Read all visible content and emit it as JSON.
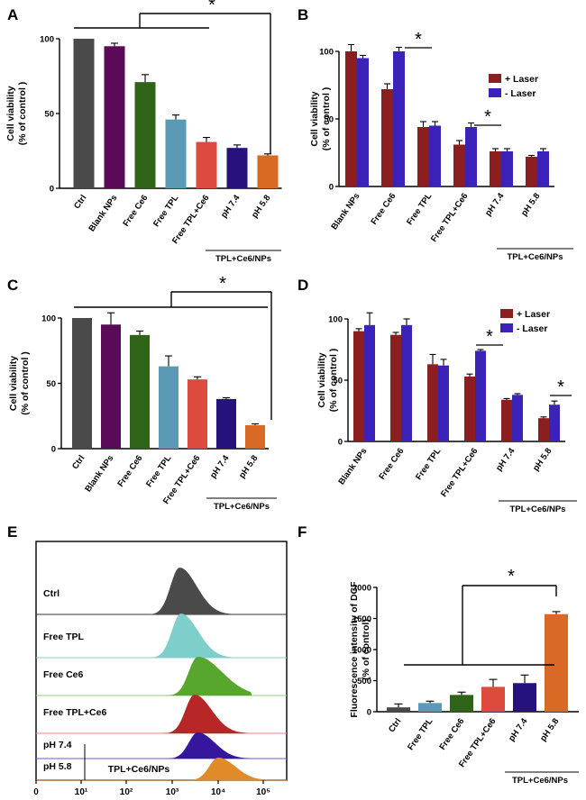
{
  "figure": {
    "colors": {
      "ctrl": "#4a4a4a",
      "blank": "#5b0a58",
      "ce6": "#2f6317",
      "tpl": "#5b9ab5",
      "tplce6": "#dd4b3f",
      "ph74": "#26127a",
      "ph58": "#d96a26",
      "laser_plus": "#8b1f1f",
      "laser_minus": "#3b22b8"
    }
  },
  "chart_data": [
    {
      "panel": "A",
      "type": "bar",
      "ylabel": [
        "Cell viability",
        "(% of control )"
      ],
      "ylim": [
        0,
        100
      ],
      "yticks": [
        "0",
        "50",
        "100"
      ],
      "categories": [
        "Ctrl",
        "Blank NPs",
        "Free Ce6",
        "Free TPL",
        "Free TPL+Ce6",
        "pH 7.4",
        "pH 5.8"
      ],
      "values": [
        100,
        95,
        71,
        46,
        31,
        27,
        22
      ],
      "errors": [
        0,
        2,
        5,
        3,
        3,
        2,
        1
      ],
      "group_label": "TPL+Ce6/NPs",
      "significance": "*"
    },
    {
      "panel": "B",
      "type": "bar",
      "ylabel": [
        "Cell viability",
        "(% of control )"
      ],
      "ylim": [
        0,
        100
      ],
      "yticks": [
        "0",
        "50",
        "100"
      ],
      "categories": [
        "Blank NPs",
        "Free Ce6",
        "Free TPL",
        "Free TPL+Ce6",
        "pH 7.4",
        "pH 5.8"
      ],
      "series": [
        {
          "name": "+ Laser",
          "values": [
            100,
            72,
            44,
            31,
            26,
            22
          ],
          "errors": [
            5,
            4,
            4,
            3,
            2,
            1
          ]
        },
        {
          "name": "- Laser",
          "values": [
            95,
            100,
            45,
            44,
            26,
            26
          ],
          "errors": [
            2,
            3,
            3,
            3,
            2,
            2
          ]
        }
      ],
      "group_label": "TPL+Ce6/NPs",
      "significance": [
        "*",
        "*"
      ]
    },
    {
      "panel": "C",
      "type": "bar",
      "ylabel": [
        "Cell viability",
        "(% of control )"
      ],
      "ylim": [
        0,
        100
      ],
      "yticks": [
        "0",
        "50",
        "100"
      ],
      "categories": [
        "Ctrl",
        "Blank NPs",
        "Free Ce6",
        "Free TPL",
        "Free TPL+Ce6",
        "pH 7.4",
        "pH 5.8"
      ],
      "values": [
        100,
        95,
        87,
        63,
        53,
        38,
        18
      ],
      "errors": [
        0,
        9,
        3,
        8,
        2,
        1,
        1
      ],
      "group_label": "TPL+Ce6/NPs",
      "significance": "*"
    },
    {
      "panel": "D",
      "type": "bar",
      "ylabel": [
        "Cell viability",
        "(% of control )"
      ],
      "ylim": [
        0,
        100
      ],
      "yticks": [
        "0",
        "50",
        "100"
      ],
      "categories": [
        "Blank NPs",
        "Free Ce6",
        "Free TPL",
        "Free TPL+Ce6",
        "pH 7.4",
        "pH 5.8"
      ],
      "series": [
        {
          "name": "+ Laser",
          "values": [
            90,
            87,
            63,
            53,
            34,
            19
          ],
          "errors": [
            2,
            2,
            8,
            2,
            1,
            1
          ]
        },
        {
          "name": "- Laser",
          "values": [
            95,
            95,
            62,
            74,
            38,
            30
          ],
          "errors": [
            10,
            5,
            5,
            1,
            1,
            3
          ]
        }
      ],
      "group_label": "TPL+Ce6/NPs",
      "significance": [
        "*",
        "*"
      ]
    },
    {
      "panel": "E",
      "type": "histogram",
      "x_ticks": [
        "0",
        "10¹",
        "10²",
        "10³",
        "10⁴",
        "10⁵"
      ],
      "rows": [
        {
          "label": "Ctrl",
          "peak_log": 3.15
        },
        {
          "label": "Free TPL",
          "peak_log": 3.18
        },
        {
          "label": "Free Ce6",
          "peak_log": 3.55
        },
        {
          "label": "Free TPL+Ce6",
          "peak_log": 3.48
        },
        {
          "label": "pH 7.4",
          "peak_log": 3.55
        },
        {
          "label": "pH 5.8",
          "peak_log": 4.0
        }
      ],
      "group_label": "TPL+Ce6/NPs"
    },
    {
      "panel": "F",
      "type": "bar",
      "ylabel": [
        "Fluorescence intensity of DCF",
        "(% of control)"
      ],
      "ylim": [
        0,
        2000
      ],
      "yticks": [
        "0",
        "500",
        "1000",
        "1500",
        "2000"
      ],
      "categories": [
        "Ctrl",
        "Free TPL",
        "Free Ce6",
        "Free TPL+Ce6",
        "pH 7.4",
        "pH 5.8"
      ],
      "values": [
        70,
        140,
        270,
        400,
        460,
        1570
      ],
      "errors": [
        55,
        30,
        45,
        120,
        130,
        40
      ],
      "group_label": "TPL+Ce6/NPs",
      "significance": "*"
    }
  ]
}
